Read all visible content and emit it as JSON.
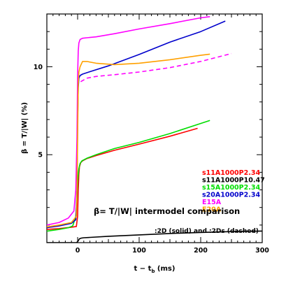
{
  "chart_data": {
    "type": "line",
    "xlabel": "t − t",
    "xlabel_sub": "b",
    "xlabel_unit": " (ms)",
    "ylabel": "β = T/|W| (%)",
    "xlim": [
      -50,
      300
    ],
    "ylim": [
      0,
      13
    ],
    "xticks": [
      0,
      100,
      200,
      300
    ],
    "yticks": [
      5,
      10
    ],
    "annotation": "β= T/|W| intermodel comparison",
    "annotation_sub": ":2D (solid) and :2Ds (dashed)",
    "legend_position": "right",
    "series": [
      {
        "name": "s11A1000P2.34",
        "color": "#ff0000",
        "dash": false,
        "x": [
          -50,
          -30,
          -10,
          -2,
          0,
          1,
          2,
          3,
          5,
          8,
          15,
          30,
          60,
          100,
          150,
          195
        ],
        "y": [
          0.75,
          0.8,
          0.88,
          0.92,
          1.5,
          3.0,
          3.9,
          4.3,
          4.55,
          4.65,
          4.78,
          4.95,
          5.25,
          5.6,
          6.05,
          6.5
        ]
      },
      {
        "name": "s11A1000P10.47",
        "color": "#000000",
        "dash": false,
        "x": [
          -50,
          -10,
          -2,
          0,
          3,
          6,
          10,
          20,
          50,
          100,
          150,
          200,
          250,
          300
        ],
        "y": [
          0,
          0,
          0,
          0.05,
          0.22,
          0.26,
          0.28,
          0.3,
          0.36,
          0.44,
          0.52,
          0.58,
          0.63,
          0.66
        ]
      },
      {
        "name": "s15A1000P2.34",
        "color": "#00dd00",
        "dash": false,
        "x": [
          -50,
          -30,
          -15,
          -8,
          -3,
          -1,
          0,
          2,
          4,
          7,
          15,
          30,
          60,
          100,
          150,
          215
        ],
        "y": [
          0.65,
          0.75,
          0.85,
          0.95,
          1.5,
          2.5,
          3.5,
          4.2,
          4.5,
          4.65,
          4.8,
          5.0,
          5.35,
          5.7,
          6.2,
          6.95
        ]
      },
      {
        "name": "s20A1000P2.34",
        "color": "#0000cc",
        "dash": false,
        "x": [
          -50,
          -30,
          -10,
          -3,
          -1,
          0,
          1,
          2,
          4,
          8,
          20,
          50,
          100,
          150,
          200,
          240
        ],
        "y": [
          0.85,
          0.95,
          1.1,
          1.3,
          3.0,
          7.0,
          8.8,
          9.35,
          9.5,
          9.58,
          9.72,
          10.05,
          10.7,
          11.4,
          12.0,
          12.6
        ]
      },
      {
        "name": "E15A",
        "color": "#ff00ff",
        "dash": false,
        "x": [
          -50,
          -30,
          -15,
          -6,
          -3,
          -1,
          0,
          1,
          2,
          4,
          8,
          15,
          30,
          60,
          100,
          150,
          200,
          215
        ],
        "y": [
          1.0,
          1.15,
          1.4,
          1.8,
          3.0,
          6.0,
          9.5,
          10.9,
          11.35,
          11.55,
          11.62,
          11.65,
          11.7,
          11.88,
          12.15,
          12.45,
          12.78,
          12.85
        ]
      },
      {
        "name": "E20A",
        "color": "#ffa000",
        "dash": false,
        "x": [
          -50,
          -30,
          -10,
          -2,
          -1,
          0,
          1,
          2,
          4,
          8,
          15,
          30,
          60,
          100,
          150,
          200,
          215
        ],
        "y": [
          0.9,
          1.0,
          1.15,
          1.5,
          3.0,
          6.0,
          9.0,
          9.7,
          10.0,
          10.3,
          10.3,
          10.2,
          10.12,
          10.2,
          10.4,
          10.65,
          10.72
        ]
      },
      {
        "name": "",
        "color": "#ff00ff",
        "dash": true,
        "x": [
          5,
          15,
          30,
          60,
          100,
          150,
          200,
          250
        ],
        "y": [
          9.15,
          9.35,
          9.45,
          9.55,
          9.7,
          9.95,
          10.3,
          10.75
        ]
      }
    ]
  }
}
